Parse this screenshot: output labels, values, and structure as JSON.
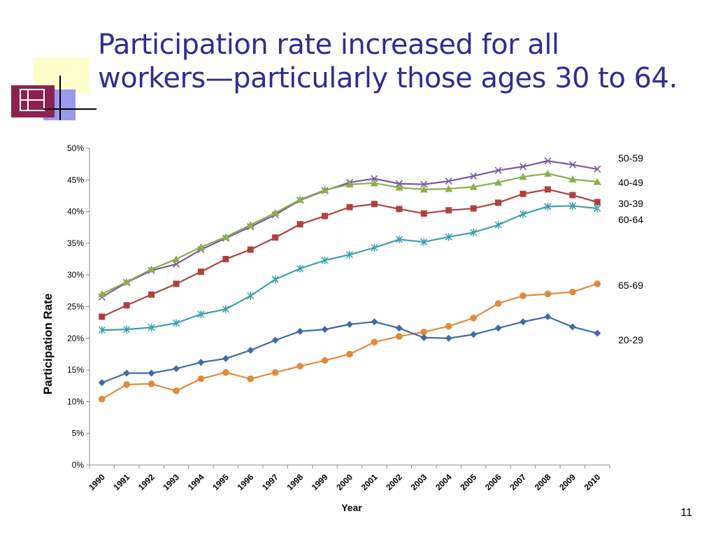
{
  "slide": {
    "title_line1": "Participation rate increased for all",
    "title_line2": "workers—particularly those ages 30 to 64.",
    "page_number": "11"
  },
  "colors": {
    "title": "#2e2e8f",
    "logo_square": "#8b2252",
    "logo_yellow": "#ffffcc",
    "logo_blue": "#9999ee"
  },
  "chart_data": {
    "type": "line",
    "xlabel": "Year",
    "ylabel": "Participation Rate",
    "ylim": [
      0,
      50
    ],
    "y_ticks": [
      "0%",
      "5%",
      "10%",
      "15%",
      "20%",
      "25%",
      "30%",
      "35%",
      "40%",
      "45%",
      "50%"
    ],
    "x": [
      "1990",
      "1991",
      "1992",
      "1993",
      "1994",
      "1995",
      "1996",
      "1997",
      "1998",
      "1999",
      "2000",
      "2001",
      "2002",
      "2003",
      "2004",
      "2005",
      "2006",
      "2007",
      "2008",
      "2009",
      "2010"
    ],
    "grid": false,
    "series": [
      {
        "name": "50-59",
        "color": "#7a5a9e",
        "marker": "x",
        "values": [
          26.5,
          28.8,
          30.7,
          31.7,
          34.0,
          35.8,
          37.6,
          39.5,
          41.8,
          43.3,
          44.6,
          45.2,
          44.4,
          44.3,
          44.8,
          45.6,
          46.5,
          47.1,
          48.0,
          47.4,
          46.7
        ]
      },
      {
        "name": "40-49",
        "color": "#8cae4c",
        "marker": "triangle",
        "values": [
          27.0,
          28.9,
          30.9,
          32.5,
          34.4,
          36.0,
          37.9,
          39.8,
          41.9,
          43.4,
          44.3,
          44.5,
          43.8,
          43.5,
          43.6,
          43.9,
          44.6,
          45.5,
          46.0,
          45.1,
          44.7
        ]
      },
      {
        "name": "30-39",
        "color": "#b0413e",
        "marker": "square",
        "values": [
          23.4,
          25.2,
          26.9,
          28.6,
          30.5,
          32.5,
          34.0,
          35.9,
          38.0,
          39.3,
          40.7,
          41.2,
          40.4,
          39.7,
          40.2,
          40.5,
          41.4,
          42.8,
          43.5,
          42.6,
          41.5
        ]
      },
      {
        "name": "60-64",
        "color": "#3a9fb0",
        "marker": "star",
        "values": [
          21.3,
          21.4,
          21.7,
          22.4,
          23.8,
          24.6,
          26.7,
          29.3,
          31.0,
          32.3,
          33.2,
          34.3,
          35.6,
          35.2,
          36.0,
          36.7,
          37.9,
          39.6,
          40.8,
          40.9,
          40.5
        ]
      },
      {
        "name": "65-69",
        "color": "#e08a3c",
        "marker": "circle",
        "values": [
          10.4,
          12.7,
          12.8,
          11.7,
          13.6,
          14.6,
          13.6,
          14.6,
          15.6,
          16.5,
          17.5,
          19.4,
          20.3,
          21.0,
          21.9,
          23.2,
          25.5,
          26.7,
          27.0,
          27.3,
          28.6
        ]
      },
      {
        "name": "20-29",
        "color": "#3f6aa6",
        "marker": "diamond",
        "values": [
          13.0,
          14.5,
          14.5,
          15.2,
          16.2,
          16.8,
          18.1,
          19.7,
          21.1,
          21.4,
          22.2,
          22.6,
          21.6,
          20.1,
          20.0,
          20.6,
          21.6,
          22.6,
          23.4,
          21.8,
          20.8
        ]
      }
    ],
    "legend": [
      "50-59",
      "40-49",
      "30-39",
      "60-64",
      "65-69",
      "20-29"
    ]
  }
}
